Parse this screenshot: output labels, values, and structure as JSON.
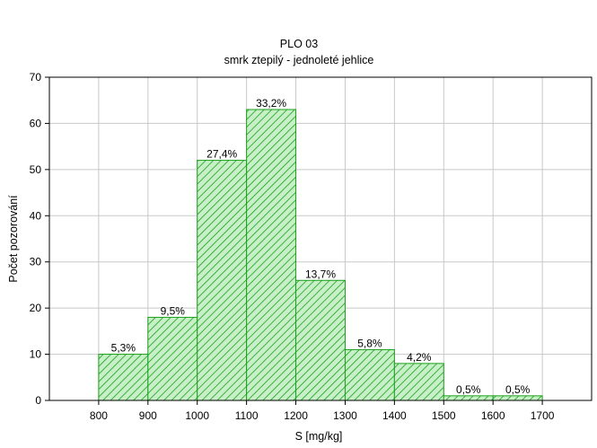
{
  "chart_data": {
    "type": "bar",
    "title": "PLO 03",
    "subtitle": "smrk ztepilý - jednoleté jehlice",
    "xlabel": "S [mg/kg]",
    "ylabel": "Počet pozorování",
    "xlim": [
      700,
      1800
    ],
    "ylim": [
      0,
      70
    ],
    "xticks": [
      800,
      900,
      1000,
      1100,
      1200,
      1300,
      1400,
      1500,
      1600,
      1700
    ],
    "yticks": [
      0,
      10,
      20,
      30,
      40,
      50,
      60,
      70
    ],
    "grid": true,
    "bins": [
      {
        "start": 800,
        "end": 900,
        "value": 10,
        "label": "5,3%"
      },
      {
        "start": 900,
        "end": 1000,
        "value": 18,
        "label": "9,5%"
      },
      {
        "start": 1000,
        "end": 1100,
        "value": 52,
        "label": "27,4%"
      },
      {
        "start": 1100,
        "end": 1200,
        "value": 63,
        "label": "33,2%"
      },
      {
        "start": 1200,
        "end": 1300,
        "value": 26,
        "label": "13,7%"
      },
      {
        "start": 1300,
        "end": 1400,
        "value": 11,
        "label": "5,8%"
      },
      {
        "start": 1400,
        "end": 1500,
        "value": 8,
        "label": "4,2%"
      },
      {
        "start": 1500,
        "end": 1600,
        "value": 1,
        "label": "0,5%"
      },
      {
        "start": 1600,
        "end": 1700,
        "value": 1,
        "label": "0,5%"
      }
    ],
    "colors": {
      "bar_fill": "#c8f0c8",
      "bar_stroke": "#1aa01a",
      "hatch": "#1aa01a",
      "grid": "#c8c8c8"
    }
  }
}
